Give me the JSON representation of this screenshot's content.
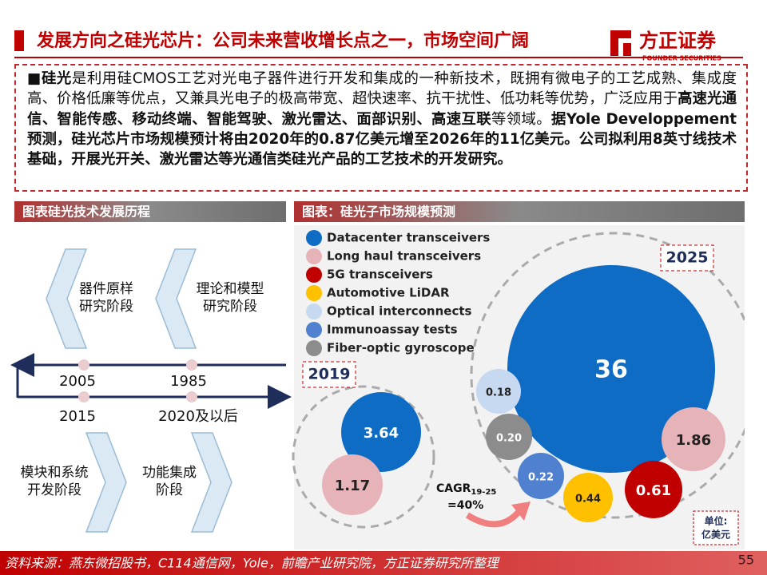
{
  "header": {
    "title": "发展方向之硅光芯片：公司未来营收增长点之一，市场空间广阔",
    "logo_name": "方正证券",
    "logo_sub": "FOUNDER SECURITIES"
  },
  "intro": {
    "segments": [
      {
        "text": "■",
        "bold": false
      },
      {
        "text": "硅光",
        "bold": true
      },
      {
        "text": "是利用硅CMOS工艺对光电子器件进行开发和集成的一种新技术，既拥有微电子的工艺成熟、集成度高、价格低廉等优点，又兼具光电子的极高带宽、超快速率、抗干扰性、低功耗等优势，广泛应用于",
        "bold": false
      },
      {
        "text": "高速光通信、智能传感、移动终端、智能驾驶、激光雷达、面部识别、高速互联",
        "bold": true
      },
      {
        "text": "等领域。",
        "bold": false
      },
      {
        "text": "据Yole Developpement 预测，硅光芯片市场规模预计将由2020年的0.87亿美元增至2026年的11亿美元。公司拟利用8英寸线技术基础，开展光开关、激光雷达等光通信类硅光产品的工艺技术的开发研究。",
        "bold": true
      }
    ]
  },
  "left_panel": {
    "title": "图表硅光技术发展历程",
    "stages": [
      [
        "器件原样",
        "研究阶段"
      ],
      [
        "理论和模型",
        "研究阶段"
      ],
      [
        "模块和系统",
        "开发阶段"
      ],
      [
        "功能集成",
        "阶段"
      ]
    ],
    "years": [
      "2005",
      "1985",
      "2015",
      "2020及以后"
    ]
  },
  "right_panel": {
    "title": "图表：硅光子市场规模预测",
    "legend": [
      {
        "name": "Datacenter transceivers",
        "color": "#0f6cc4"
      },
      {
        "name": "Long haul transceivers",
        "color": "#e6b3b8"
      },
      {
        "name": "5G transceivers",
        "color": "#c00000"
      },
      {
        "name": "Automotive LiDAR",
        "color": "#ffc000"
      },
      {
        "name": "Optical interconnects",
        "color": "#c6d9f0"
      },
      {
        "name": "Immunoassay tests",
        "color": "#4f81d0"
      },
      {
        "name": "Fiber-optic gyroscope",
        "color": "#8c8c8c"
      }
    ],
    "groups": [
      {
        "year": "2025",
        "bubbles": [
          "36",
          "1.86",
          "0.61",
          "0.44",
          "0.22",
          "0.20",
          "0.18"
        ]
      },
      {
        "year": "2019",
        "bubbles": [
          "3.64",
          "1.17"
        ]
      }
    ],
    "cagr": {
      "prefix": "CAGR",
      "subscript": "19-25",
      "suffix": "=40%"
    },
    "unit": [
      "单位:",
      "亿美元"
    ]
  },
  "footer": {
    "source": "资料来源：燕东微招股书，C114通信网，Yole，前瞻产业研究院，方正证券研究所整理",
    "page": "55"
  }
}
